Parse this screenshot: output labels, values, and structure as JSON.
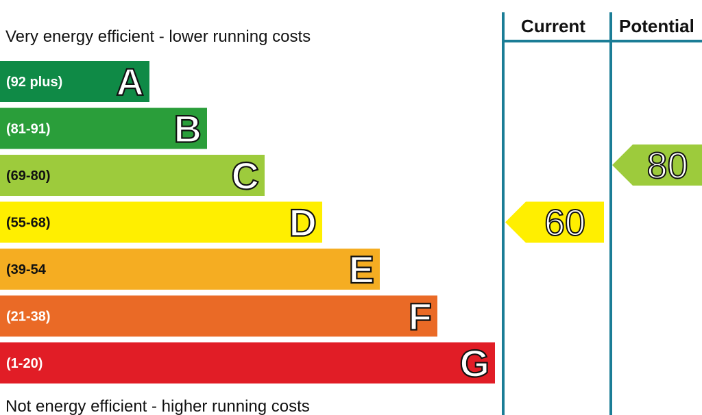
{
  "chart_data": {
    "type": "bar",
    "top_caption": "Very energy efficient - lower running costs",
    "bottom_caption": "Not energy efficient - higher running costs",
    "columns": {
      "current": "Current",
      "potential": "Potential"
    },
    "bands": [
      {
        "letter": "A",
        "range": "(92 plus)",
        "color": "#0f8a46",
        "min": 92,
        "max": 100
      },
      {
        "letter": "B",
        "range": "(81-91)",
        "color": "#2a9e3a",
        "min": 81,
        "max": 91
      },
      {
        "letter": "C",
        "range": "(69-80)",
        "color": "#9dcb3c",
        "min": 69,
        "max": 80
      },
      {
        "letter": "D",
        "range": "(55-68)",
        "color": "#ffef00",
        "min": 55,
        "max": 68
      },
      {
        "letter": "E",
        "range": "(39-54",
        "color": "#f5ad22",
        "min": 39,
        "max": 54
      },
      {
        "letter": "F",
        "range": "(21-38)",
        "color": "#ea6a26",
        "min": 21,
        "max": 38
      },
      {
        "letter": "G",
        "range": "(1-20)",
        "color": "#e11d26",
        "min": 1,
        "max": 20
      }
    ],
    "current": {
      "value": 60,
      "band": "D",
      "color": "#ffef00"
    },
    "potential": {
      "value": 80,
      "band": "C",
      "color": "#9dcb3c"
    },
    "divider_color": "#1b7d96"
  }
}
